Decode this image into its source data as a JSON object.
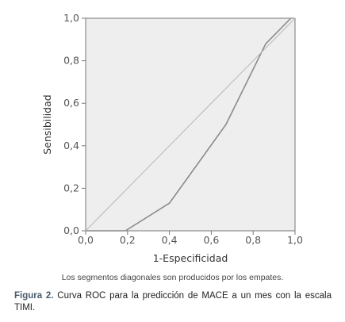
{
  "chart_data": {
    "type": "line",
    "xlabel": "1-Especificidad",
    "ylabel": "Sensibilidad",
    "xlim": [
      0,
      1
    ],
    "ylim": [
      0,
      1
    ],
    "x_ticks": [
      "0,0",
      "0,2",
      "0,4",
      "0,6",
      "0,8",
      "1,0"
    ],
    "y_ticks": [
      "0,0",
      "0,2",
      "0,4",
      "0,6",
      "0,8",
      "1,0"
    ],
    "grid": false,
    "plot_background": "#eeeeee",
    "series": [
      {
        "role": "roc",
        "color": "#8a8a8a",
        "x": [
          0.0,
          0.19,
          0.4,
          0.67,
          0.86,
          0.98
        ],
        "y": [
          0.0,
          0.0,
          0.13,
          0.5,
          0.88,
          1.0
        ]
      },
      {
        "role": "reference",
        "color": "#bbbbbb",
        "x": [
          0.0,
          1.0
        ],
        "y": [
          0.0,
          1.0
        ]
      }
    ]
  },
  "note": "Los segmentos diagonales son producidos por los empates.",
  "caption": {
    "label": "Figura 2.",
    "text": " Curva ROC para la predicción de MACE a un mes con la escala TIMI."
  }
}
